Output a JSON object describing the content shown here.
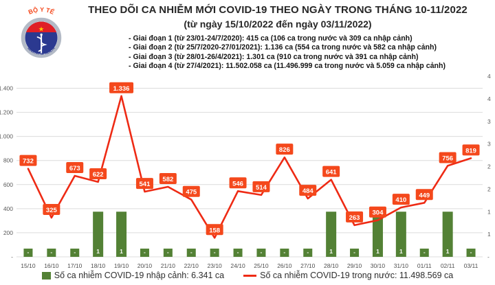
{
  "logo": {
    "arc_top": "BỘ Y TẾ",
    "arc_bottom": "MINISTRY OF HEALTH"
  },
  "colors": {
    "line": "#ee2a14",
    "label_bg": "#f4481c",
    "bar": "#538135",
    "grid": "#dcdcdc",
    "axis_text": "#595959",
    "title_text": "#262626",
    "logo_blue": "#2b3990",
    "logo_red": "#e01f26",
    "logo_star": "#ffcc00",
    "logo_ring": "#b3bac6"
  },
  "chart_data": {
    "type": "combo-line-bar",
    "title": "THEO DÕI CA NHIỄM MỚI COVID-19 THEO NGÀY TRONG THÁNG 10-11/2022",
    "subtitle": "(từ ngày 15/10/2022 đến ngày 03/11/2022)",
    "annotations": [
      "- Giai đoạn 1 (từ 23/01-24/7/2020): 415 ca (106 ca trong nước và 309 ca nhập cảnh)",
      "- Giai đoạn 2 (từ 25/7/2020-27/01/2021): 1.136 ca (554 ca trong nước và 582 ca nhập cảnh)",
      "- Giai đoạn 3 (từ 28/01-26/4/2021): 1.301 ca (910 ca trong nước và 391 ca nhập cảnh)",
      "- Giai đoạn 4 (từ 27/4/2021): 11.502.058 ca (11.496.999 ca trong nước và 5.059 ca nhập cảnh)"
    ],
    "categories": [
      "15/10",
      "16/10",
      "17/10",
      "18/10",
      "19/10",
      "20/10",
      "21/10",
      "22/10",
      "23/10",
      "24/10",
      "25/10",
      "26/10",
      "27/10",
      "28/10",
      "29/10",
      "30/10",
      "31/10",
      "01/11",
      "02/11",
      "03/11"
    ],
    "series": [
      {
        "name": "Số ca nhiễm COVID-19 nhập cảnh: 6.341 ca",
        "type": "bar",
        "axis": "secondary",
        "zero_label": "-",
        "values": [
          0,
          0,
          0,
          1,
          1,
          0,
          0,
          0,
          0,
          0,
          0,
          0,
          0,
          1,
          0,
          1,
          1,
          0,
          1,
          0
        ]
      },
      {
        "name": "Số ca nhiễm COVID-19 trong nước: 11.498.569 ca",
        "type": "line",
        "axis": "primary",
        "values": [
          732,
          325,
          673,
          622,
          1336,
          541,
          582,
          475,
          158,
          546,
          514,
          826,
          484,
          641,
          263,
          304,
          410,
          449,
          756,
          819
        ]
      }
    ],
    "primary_axis": {
      "min": 0,
      "max": 1500,
      "tick_interval": 200,
      "tick_labels": [
        "-",
        "200",
        "400",
        "600",
        "800",
        "1.000",
        "1.200",
        "1.400"
      ]
    },
    "secondary_axis": {
      "min": 0,
      "max": 4,
      "tick_interval": 0.5,
      "tick_labels": [
        "-",
        "1",
        "1",
        "2",
        "2",
        "3",
        "3",
        "4",
        "4"
      ]
    },
    "grid": true,
    "legend_position": "bottom"
  }
}
